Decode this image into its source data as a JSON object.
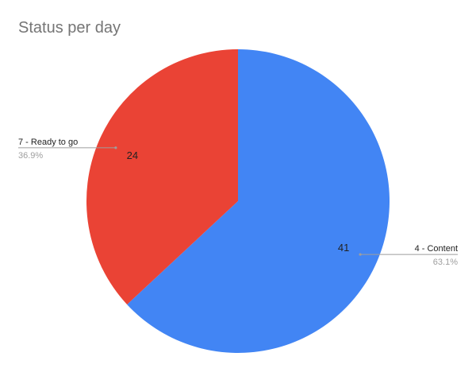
{
  "chart_data": {
    "type": "pie",
    "title": "Status per day",
    "slices": [
      {
        "label": "4 - Content",
        "value": 41,
        "percent": "63.1%",
        "color": "#4285f4"
      },
      {
        "label": "7 - Ready to go",
        "value": 24,
        "percent": "36.9%",
        "color": "#ea4335"
      }
    ],
    "start_angle": "12 o'clock",
    "direction": "clockwise"
  }
}
